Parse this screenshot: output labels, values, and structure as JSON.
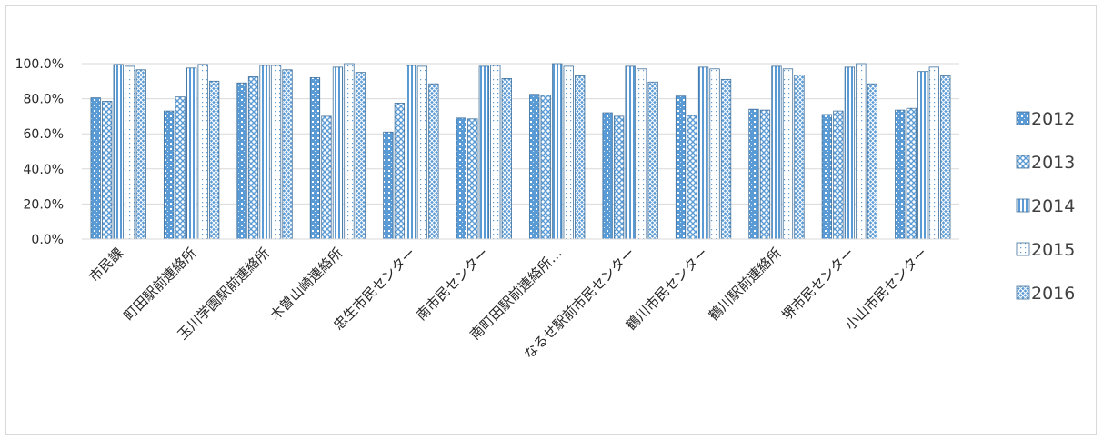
{
  "chart_data": {
    "type": "bar",
    "title": "",
    "xlabel": "",
    "ylabel": "",
    "ylim": [
      0,
      100
    ],
    "yticks": [
      "0.0%",
      "20.0%",
      "40.0%",
      "60.0%",
      "80.0%",
      "100.0%"
    ],
    "ytick_values": [
      0,
      20,
      40,
      60,
      80,
      100
    ],
    "grid": true,
    "legend_position": "right",
    "categories": [
      "市民課",
      "町田駅前連絡所",
      "玉川学園駅前連絡所",
      "木曽山崎連絡所",
      "忠生市民センター",
      "南市民センター",
      "南町田駅前連絡所…",
      "なるせ駅前市民センター",
      "鶴川市民センター",
      "鶴川駅前連絡所",
      "堺市民センター",
      "小山市民センター"
    ],
    "series": [
      {
        "name": "2012",
        "pattern": "dots",
        "color": "#5b9bd5",
        "values": [
          80.5,
          73.0,
          89.0,
          92.0,
          61.0,
          69.0,
          82.5,
          72.0,
          81.5,
          74.0,
          71.0,
          73.5
        ]
      },
      {
        "name": "2013",
        "pattern": "checker",
        "color": "#5b9bd5",
        "values": [
          78.5,
          81.0,
          92.5,
          70.0,
          77.5,
          68.5,
          82.0,
          70.0,
          70.5,
          73.5,
          73.0,
          74.5
        ]
      },
      {
        "name": "2014",
        "pattern": "vstripes",
        "color": "#5b9bd5",
        "values": [
          99.5,
          97.5,
          99.0,
          98.0,
          99.0,
          98.5,
          100.0,
          98.5,
          98.0,
          98.5,
          98.0,
          95.5
        ]
      },
      {
        "name": "2015",
        "pattern": "sparse",
        "color": "#5b9bd5",
        "values": [
          98.5,
          99.5,
          99.0,
          100.0,
          98.5,
          99.0,
          98.5,
          97.0,
          97.0,
          97.0,
          100.0,
          98.0
        ]
      },
      {
        "name": "2016",
        "pattern": "crosshatch",
        "color": "#5b9bd5",
        "values": [
          96.5,
          90.0,
          96.5,
          95.0,
          88.5,
          91.5,
          93.0,
          89.5,
          91.0,
          93.5,
          88.5,
          93.0
        ]
      }
    ]
  }
}
